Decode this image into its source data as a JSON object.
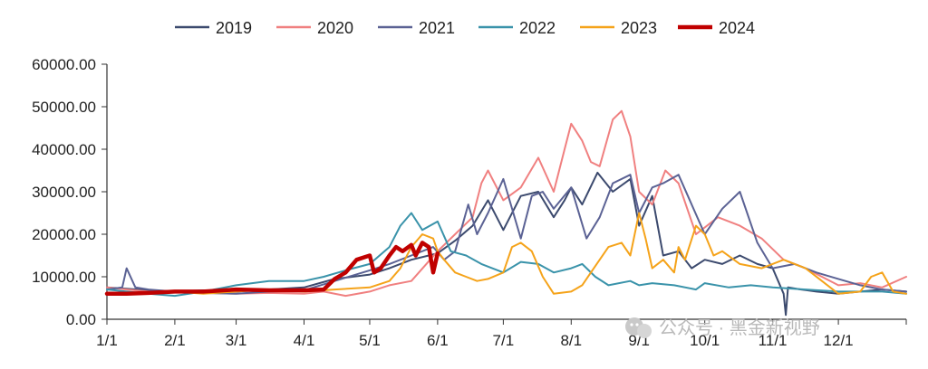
{
  "chart_data": {
    "type": "line",
    "title": "",
    "xlabel": "",
    "ylabel": "",
    "ylim": [
      0,
      60000
    ],
    "yticks": [
      0,
      10000,
      20000,
      30000,
      40000,
      50000,
      60000
    ],
    "ytick_labels": [
      "0.00",
      "10000.00",
      "20000.00",
      "30000.00",
      "40000.00",
      "50000.00",
      "60000.00"
    ],
    "xlim": [
      1,
      366
    ],
    "xticks": [
      1,
      32,
      60,
      91,
      121,
      152,
      182,
      213,
      244,
      274,
      305,
      335
    ],
    "xtick_labels": [
      "1/1",
      "2/1",
      "3/1",
      "4/1",
      "5/1",
      "6/1",
      "7/1",
      "8/1",
      "9/1",
      "10/1",
      "11/1",
      "12/1"
    ],
    "grid": false,
    "legend_position": "top",
    "series": [
      {
        "name": "2019",
        "color": "#3c4a6e",
        "width": 2,
        "x": [
          1,
          10,
          20,
          32,
          45,
          60,
          75,
          91,
          105,
          121,
          130,
          140,
          152,
          160,
          168,
          175,
          182,
          190,
          198,
          205,
          210,
          213,
          218,
          225,
          232,
          240,
          244,
          250,
          255,
          262,
          268,
          274,
          282,
          290,
          298,
          305,
          310,
          311,
          312,
          318,
          325,
          335,
          345,
          355,
          366
        ],
        "y": [
          7500,
          7200,
          6800,
          6500,
          6800,
          6500,
          7000,
          7500,
          9500,
          10500,
          12000,
          14000,
          15500,
          18500,
          22000,
          28000,
          21000,
          29000,
          30000,
          24000,
          28000,
          31000,
          27000,
          34500,
          30000,
          33000,
          22000,
          29000,
          15000,
          16000,
          12000,
          14000,
          13000,
          15000,
          13000,
          12000,
          6000,
          1000,
          7500,
          7000,
          6500,
          6000,
          6500,
          7000,
          6500
        ]
      },
      {
        "name": "2020",
        "color": "#f08080",
        "width": 2,
        "x": [
          1,
          10,
          20,
          32,
          45,
          60,
          75,
          91,
          100,
          110,
          121,
          130,
          140,
          152,
          160,
          168,
          172,
          175,
          182,
          190,
          198,
          205,
          210,
          213,
          218,
          222,
          226,
          232,
          236,
          240,
          244,
          250,
          256,
          262,
          270,
          280,
          290,
          300,
          310,
          320,
          335,
          345,
          355,
          366
        ],
        "y": [
          7500,
          7000,
          6500,
          6500,
          6200,
          6000,
          6200,
          6000,
          6500,
          5500,
          6500,
          8000,
          9000,
          16000,
          20000,
          24000,
          32000,
          35000,
          28000,
          31000,
          38000,
          30000,
          40000,
          46000,
          42000,
          37000,
          36000,
          47000,
          49000,
          43000,
          30000,
          27000,
          35000,
          32000,
          20000,
          24000,
          22000,
          19000,
          14000,
          12000,
          8000,
          8500,
          7500,
          10000
        ]
      },
      {
        "name": "2021",
        "color": "#5b6294",
        "width": 2,
        "x": [
          1,
          8,
          10,
          14,
          20,
          32,
          45,
          60,
          75,
          91,
          105,
          121,
          130,
          140,
          150,
          155,
          160,
          166,
          170,
          175,
          182,
          190,
          195,
          200,
          205,
          213,
          220,
          226,
          232,
          240,
          244,
          250,
          255,
          262,
          268,
          274,
          282,
          290,
          298,
          305,
          315,
          325,
          335,
          345,
          355,
          366
        ],
        "y": [
          7000,
          7500,
          12000,
          7500,
          7000,
          6500,
          6200,
          6000,
          6500,
          6800,
          9000,
          11500,
          13000,
          15000,
          17000,
          14000,
          16000,
          27000,
          20000,
          25000,
          33000,
          19000,
          29000,
          30000,
          26000,
          31000,
          19000,
          24000,
          32000,
          34000,
          25000,
          31000,
          32000,
          34000,
          27000,
          20000,
          26000,
          30000,
          18000,
          12000,
          13000,
          11000,
          9500,
          8000,
          7000,
          6500
        ]
      },
      {
        "name": "2022",
        "color": "#3a93aa",
        "width": 2,
        "x": [
          1,
          10,
          20,
          32,
          45,
          60,
          75,
          91,
          100,
          110,
          121,
          130,
          135,
          140,
          145,
          152,
          158,
          165,
          172,
          182,
          190,
          198,
          205,
          213,
          218,
          224,
          230,
          240,
          244,
          250,
          260,
          270,
          274,
          285,
          295,
          305,
          320,
          335,
          345,
          355,
          366
        ],
        "y": [
          7000,
          6500,
          6000,
          5500,
          6500,
          8000,
          9000,
          9000,
          10000,
          11500,
          13000,
          17000,
          22000,
          25000,
          21000,
          23000,
          16000,
          15000,
          13000,
          11000,
          13500,
          13000,
          11000,
          12000,
          13000,
          10000,
          8000,
          9000,
          8000,
          8500,
          8000,
          7000,
          8500,
          7500,
          8000,
          7500,
          7000,
          6500,
          6500,
          6500,
          6000
        ]
      },
      {
        "name": "2023",
        "color": "#f5a31a",
        "width": 2,
        "x": [
          1,
          10,
          20,
          32,
          45,
          60,
          75,
          91,
          105,
          121,
          130,
          135,
          140,
          145,
          150,
          152,
          155,
          160,
          165,
          170,
          175,
          182,
          186,
          190,
          195,
          200,
          205,
          213,
          218,
          222,
          230,
          236,
          240,
          244,
          247,
          250,
          255,
          260,
          262,
          265,
          270,
          274,
          278,
          282,
          290,
          300,
          310,
          320,
          335,
          345,
          350,
          355,
          360,
          366
        ],
        "y": [
          6000,
          6000,
          6200,
          6500,
          6000,
          6500,
          7000,
          6500,
          7000,
          7500,
          9000,
          12000,
          17000,
          20000,
          19000,
          16000,
          14000,
          11000,
          10000,
          9000,
          9500,
          11000,
          17000,
          18000,
          16000,
          10000,
          6000,
          6500,
          8000,
          11000,
          17000,
          18000,
          15000,
          25000,
          19000,
          12000,
          14000,
          11000,
          17000,
          14000,
          22000,
          20000,
          15000,
          16000,
          13000,
          12000,
          14000,
          12000,
          6000,
          6500,
          10000,
          11000,
          6500,
          6000
        ]
      },
      {
        "name": "2024",
        "color": "#c00000",
        "width": 4.5,
        "x": [
          1,
          10,
          20,
          32,
          45,
          60,
          75,
          91,
          100,
          105,
          110,
          115,
          121,
          123,
          126,
          130,
          133,
          136,
          140,
          142,
          145,
          148,
          150,
          152
        ],
        "y": [
          6000,
          6000,
          6200,
          6500,
          6500,
          7000,
          6800,
          6800,
          7000,
          9500,
          11000,
          14000,
          15000,
          11000,
          12000,
          15000,
          17000,
          16000,
          17500,
          15000,
          18000,
          17000,
          11000,
          15500
        ]
      }
    ]
  },
  "watermark": {
    "icon": "wechat-icon",
    "text": "公众号 · 黑金新视野"
  }
}
